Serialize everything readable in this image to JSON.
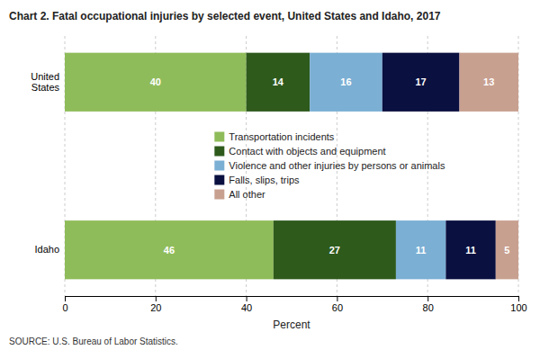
{
  "chart_data": {
    "type": "bar",
    "orientation": "horizontal",
    "stacked": true,
    "title": "Chart 2.  Fatal occupational injuries by selected event, United States and Idaho, 2017",
    "categories": [
      "United\nStates",
      "Idaho"
    ],
    "series": [
      {
        "name": "Transportation incidents",
        "color": "#8fbc5a",
        "values": [
          40,
          46
        ]
      },
      {
        "name": "Contact with objects and equipment",
        "color": "#2e5a1c",
        "values": [
          14,
          27
        ]
      },
      {
        "name": "Violence and other injuries by persons or animals",
        "color": "#7bafd4",
        "values": [
          16,
          11
        ]
      },
      {
        "name": "Falls, slips, trips",
        "color": "#0a1040",
        "values": [
          17,
          11
        ]
      },
      {
        "name": "All other",
        "color": "#c8a090",
        "values": [
          13,
          5
        ]
      }
    ],
    "xlabel": "Percent",
    "xlim": [
      0,
      100
    ],
    "xticks": [
      0,
      20,
      40,
      60,
      80,
      100
    ],
    "grid": true,
    "data_labels": true,
    "legend": "center",
    "annotations": [
      "SOURCE: U.S. Bureau of Labor Statistics."
    ]
  }
}
